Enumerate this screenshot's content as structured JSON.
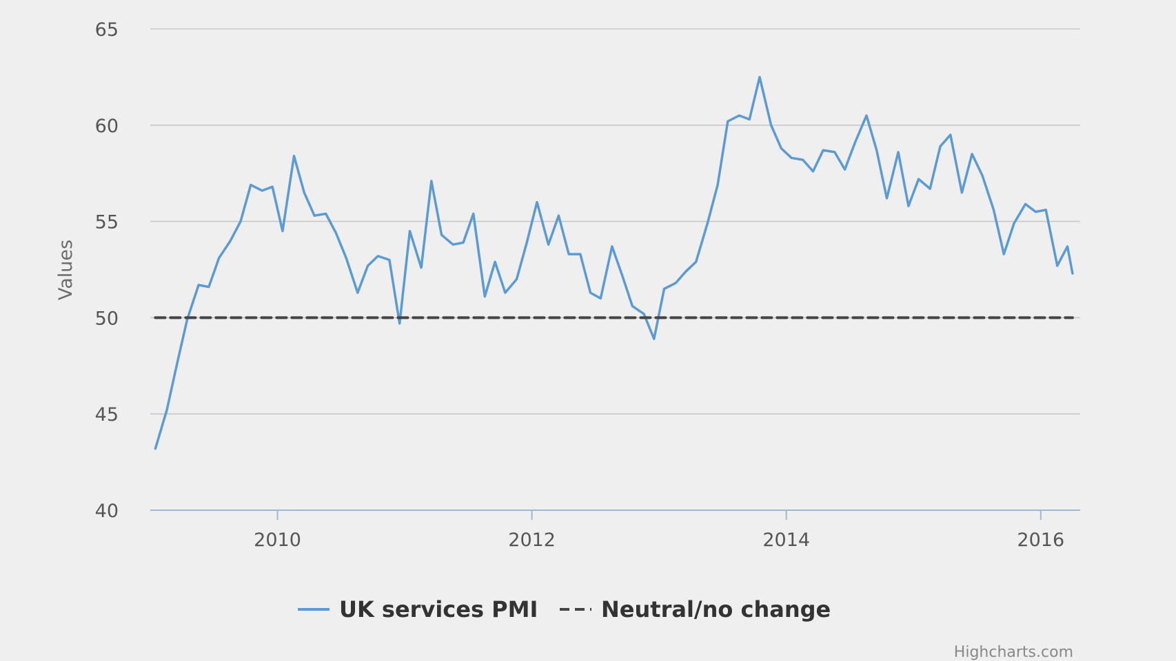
{
  "chart_data": {
    "type": "line",
    "title": "",
    "xlabel": "",
    "ylabel": "Values",
    "xlim": [
      2009.04,
      2016.25
    ],
    "ylim": [
      40,
      65
    ],
    "y_ticks": [
      40,
      45,
      50,
      55,
      60,
      65
    ],
    "x_ticks": [
      2010,
      2012,
      2014,
      2016
    ],
    "x_tick_labels": [
      "2010",
      "2012",
      "2014",
      "2016"
    ],
    "y_tick_labels": [
      "40",
      "45",
      "50",
      "55",
      "60",
      "65"
    ],
    "grid": true,
    "legend_position": "bottom-center",
    "series": [
      {
        "name": "UK services PMI",
        "color": "#5b9bd5",
        "style": "solid",
        "x": [
          2009.04,
          2009.13,
          2009.21,
          2009.29,
          2009.38,
          2009.46,
          2009.54,
          2009.63,
          2009.71,
          2009.79,
          2009.88,
          2009.96,
          2010.04,
          2010.13,
          2010.21,
          2010.29,
          2010.38,
          2010.46,
          2010.54,
          2010.63,
          2010.71,
          2010.79,
          2010.88,
          2010.96,
          2011.04,
          2011.13,
          2011.21,
          2011.29,
          2011.38,
          2011.46,
          2011.54,
          2011.63,
          2011.71,
          2011.79,
          2011.88,
          2011.96,
          2012.04,
          2012.13,
          2012.21,
          2012.29,
          2012.38,
          2012.46,
          2012.54,
          2012.63,
          2012.71,
          2012.79,
          2012.88,
          2012.96,
          2013.04,
          2013.13,
          2013.21,
          2013.29,
          2013.38,
          2013.46,
          2013.54,
          2013.63,
          2013.71,
          2013.79,
          2013.88,
          2013.96,
          2014.04,
          2014.13,
          2014.21,
          2014.29,
          2014.38,
          2014.46,
          2014.54,
          2014.63,
          2014.71,
          2014.79,
          2014.88,
          2014.96,
          2015.04,
          2015.13,
          2015.21,
          2015.29,
          2015.38,
          2015.46,
          2015.54,
          2015.63,
          2015.71,
          2015.79,
          2015.88,
          2015.96,
          2016.04,
          2016.13,
          2016.21,
          2016.25
        ],
        "values": [
          43.2,
          45.2,
          47.6,
          49.9,
          51.7,
          51.6,
          53.1,
          54.0,
          55.0,
          56.9,
          56.6,
          56.8,
          54.5,
          58.4,
          56.5,
          55.3,
          55.4,
          54.4,
          53.1,
          51.3,
          52.7,
          53.2,
          53.0,
          49.7,
          54.5,
          52.6,
          57.1,
          54.3,
          53.8,
          53.9,
          55.4,
          51.1,
          52.9,
          51.3,
          52.0,
          53.9,
          56.0,
          53.8,
          55.3,
          53.3,
          53.3,
          51.3,
          51.0,
          53.7,
          52.2,
          50.6,
          50.2,
          48.9,
          51.5,
          51.8,
          52.4,
          52.9,
          54.9,
          56.9,
          60.2,
          60.5,
          60.3,
          62.5,
          60.0,
          58.8,
          58.3,
          58.2,
          57.6,
          58.7,
          58.6,
          57.7,
          59.1,
          60.5,
          58.7,
          56.2,
          58.6,
          55.8,
          57.2,
          56.7,
          58.9,
          59.5,
          56.5,
          58.5,
          57.4,
          55.6,
          53.3,
          54.9,
          55.9,
          55.5,
          55.6,
          52.7,
          53.7,
          52.3
        ]
      },
      {
        "name": "Neutral/no change",
        "color": "#444444",
        "style": "dashed",
        "x": [
          2009.04,
          2016.25
        ],
        "values": [
          50,
          50
        ]
      }
    ],
    "credits": "Highcharts.com"
  }
}
